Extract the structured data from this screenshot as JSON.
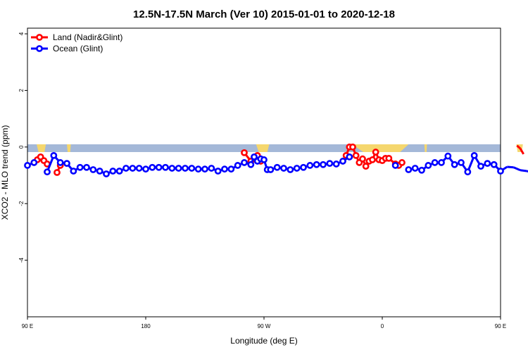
{
  "chart_data": {
    "type": "line",
    "title": "12.5N-17.5N March (Ver 10)   2015-01-01 to 2020-12-18",
    "xlabel": "Longitude (deg E)",
    "ylabel": "XCO2 - MLO trend (ppm)",
    "xlim": [
      90,
      450
    ],
    "ylim": [
      -6,
      4.2
    ],
    "xticks": [
      {
        "value": 90,
        "label": "90 E"
      },
      {
        "value": 180,
        "label": "180"
      },
      {
        "value": 270,
        "label": "90 W"
      },
      {
        "value": 360,
        "label": "0"
      },
      {
        "value": 450,
        "label": "90 E"
      },
      {
        "value": 540,
        "label": "180"
      }
    ],
    "yticks": [
      {
        "value": 4,
        "label": "4"
      },
      {
        "value": 2,
        "label": "2"
      },
      {
        "value": 0,
        "label": "0"
      },
      {
        "value": -2,
        "label": "-2"
      },
      {
        "value": -4,
        "label": "-4"
      }
    ],
    "legend_position": "top-left",
    "series": [
      {
        "name": "Land (Nadir&Glint)",
        "color": "#ff0000",
        "points": [
          [
            97.5,
            -0.45
          ],
          [
            100,
            -0.35
          ],
          [
            102.5,
            -0.48
          ],
          [
            105,
            -0.6
          ],
          [
            112.5,
            -0.9
          ],
          [
            115,
            -0.65
          ],
          [
            255,
            -0.2
          ],
          [
            260,
            -0.5
          ],
          [
            265,
            -0.3
          ],
          [
            267.5,
            -0.5
          ],
          [
            332.5,
            -0.3
          ],
          [
            335,
            0.0
          ],
          [
            337.5,
            0.0
          ],
          [
            340,
            -0.3
          ],
          [
            342.5,
            -0.55
          ],
          [
            345,
            -0.42
          ],
          [
            347.5,
            -0.68
          ],
          [
            350,
            -0.5
          ],
          [
            352.5,
            -0.45
          ],
          [
            355,
            -0.18
          ],
          [
            357.5,
            -0.45
          ],
          [
            360,
            -0.48
          ],
          [
            362.5,
            -0.4
          ],
          [
            365,
            -0.4
          ],
          [
            370,
            -0.6
          ],
          [
            372.5,
            -0.65
          ],
          [
            375,
            -0.55
          ],
          [
            462.5,
            0.05
          ],
          [
            465,
            -0.05
          ],
          [
            467.5,
            -0.25
          ],
          [
            477.5,
            -0.4
          ],
          [
            480,
            -0.35
          ],
          [
            482.5,
            -0.5
          ],
          [
            485,
            -0.62
          ],
          [
            490,
            -0.9
          ],
          [
            492.5,
            -0.7
          ]
        ]
      },
      {
        "name": "Ocean (Glint)",
        "color": "#0000ff",
        "points": [
          [
            90,
            -0.65
          ],
          [
            95,
            -0.55
          ],
          [
            105,
            -0.88
          ],
          [
            110,
            -0.3
          ],
          [
            115,
            -0.55
          ],
          [
            120,
            -0.58
          ],
          [
            125,
            -0.85
          ],
          [
            130,
            -0.72
          ],
          [
            135,
            -0.72
          ],
          [
            140,
            -0.8
          ],
          [
            145,
            -0.85
          ],
          [
            150,
            -0.95
          ],
          [
            155,
            -0.85
          ],
          [
            160,
            -0.85
          ],
          [
            165,
            -0.75
          ],
          [
            170,
            -0.75
          ],
          [
            175,
            -0.75
          ],
          [
            180,
            -0.78
          ],
          [
            185,
            -0.72
          ],
          [
            190,
            -0.72
          ],
          [
            195,
            -0.72
          ],
          [
            200,
            -0.75
          ],
          [
            205,
            -0.75
          ],
          [
            210,
            -0.75
          ],
          [
            215,
            -0.75
          ],
          [
            220,
            -0.78
          ],
          [
            225,
            -0.78
          ],
          [
            230,
            -0.75
          ],
          [
            235,
            -0.85
          ],
          [
            240,
            -0.78
          ],
          [
            245,
            -0.78
          ],
          [
            250,
            -0.65
          ],
          [
            255,
            -0.55
          ],
          [
            260,
            -0.62
          ],
          [
            262.5,
            -0.35
          ],
          [
            265,
            -0.5
          ],
          [
            267.5,
            -0.42
          ],
          [
            270,
            -0.45
          ],
          [
            272.5,
            -0.8
          ],
          [
            275,
            -0.8
          ],
          [
            280,
            -0.72
          ],
          [
            285,
            -0.75
          ],
          [
            290,
            -0.8
          ],
          [
            295,
            -0.75
          ],
          [
            300,
            -0.72
          ],
          [
            305,
            -0.65
          ],
          [
            310,
            -0.62
          ],
          [
            315,
            -0.62
          ],
          [
            320,
            -0.58
          ],
          [
            325,
            -0.6
          ],
          [
            330,
            -0.5
          ],
          [
            335,
            -0.35
          ],
          [
            370,
            -0.65
          ],
          [
            380,
            -0.8
          ],
          [
            385,
            -0.75
          ],
          [
            390,
            -0.82
          ],
          [
            395,
            -0.65
          ],
          [
            400,
            -0.55
          ],
          [
            405,
            -0.55
          ],
          [
            410,
            -0.32
          ],
          [
            415,
            -0.62
          ],
          [
            420,
            -0.55
          ],
          [
            425,
            -0.88
          ],
          [
            430,
            -0.3
          ],
          [
            435,
            -0.68
          ],
          [
            440,
            -0.58
          ],
          [
            445,
            -0.62
          ],
          [
            450,
            -0.85
          ],
          [
            455,
            -0.7
          ],
          [
            460,
            -0.72
          ],
          [
            465,
            -0.82
          ],
          [
            470,
            -0.85
          ],
          [
            475,
            -0.92
          ],
          [
            480,
            -0.85
          ],
          [
            485,
            -0.85
          ],
          [
            490,
            -0.75
          ],
          [
            495,
            -0.78
          ]
        ]
      }
    ]
  },
  "colors": {
    "background": "#ffffff",
    "land_band": "#f5d76e",
    "ocean_band": "#a4b8d8",
    "axis": "#000000"
  }
}
